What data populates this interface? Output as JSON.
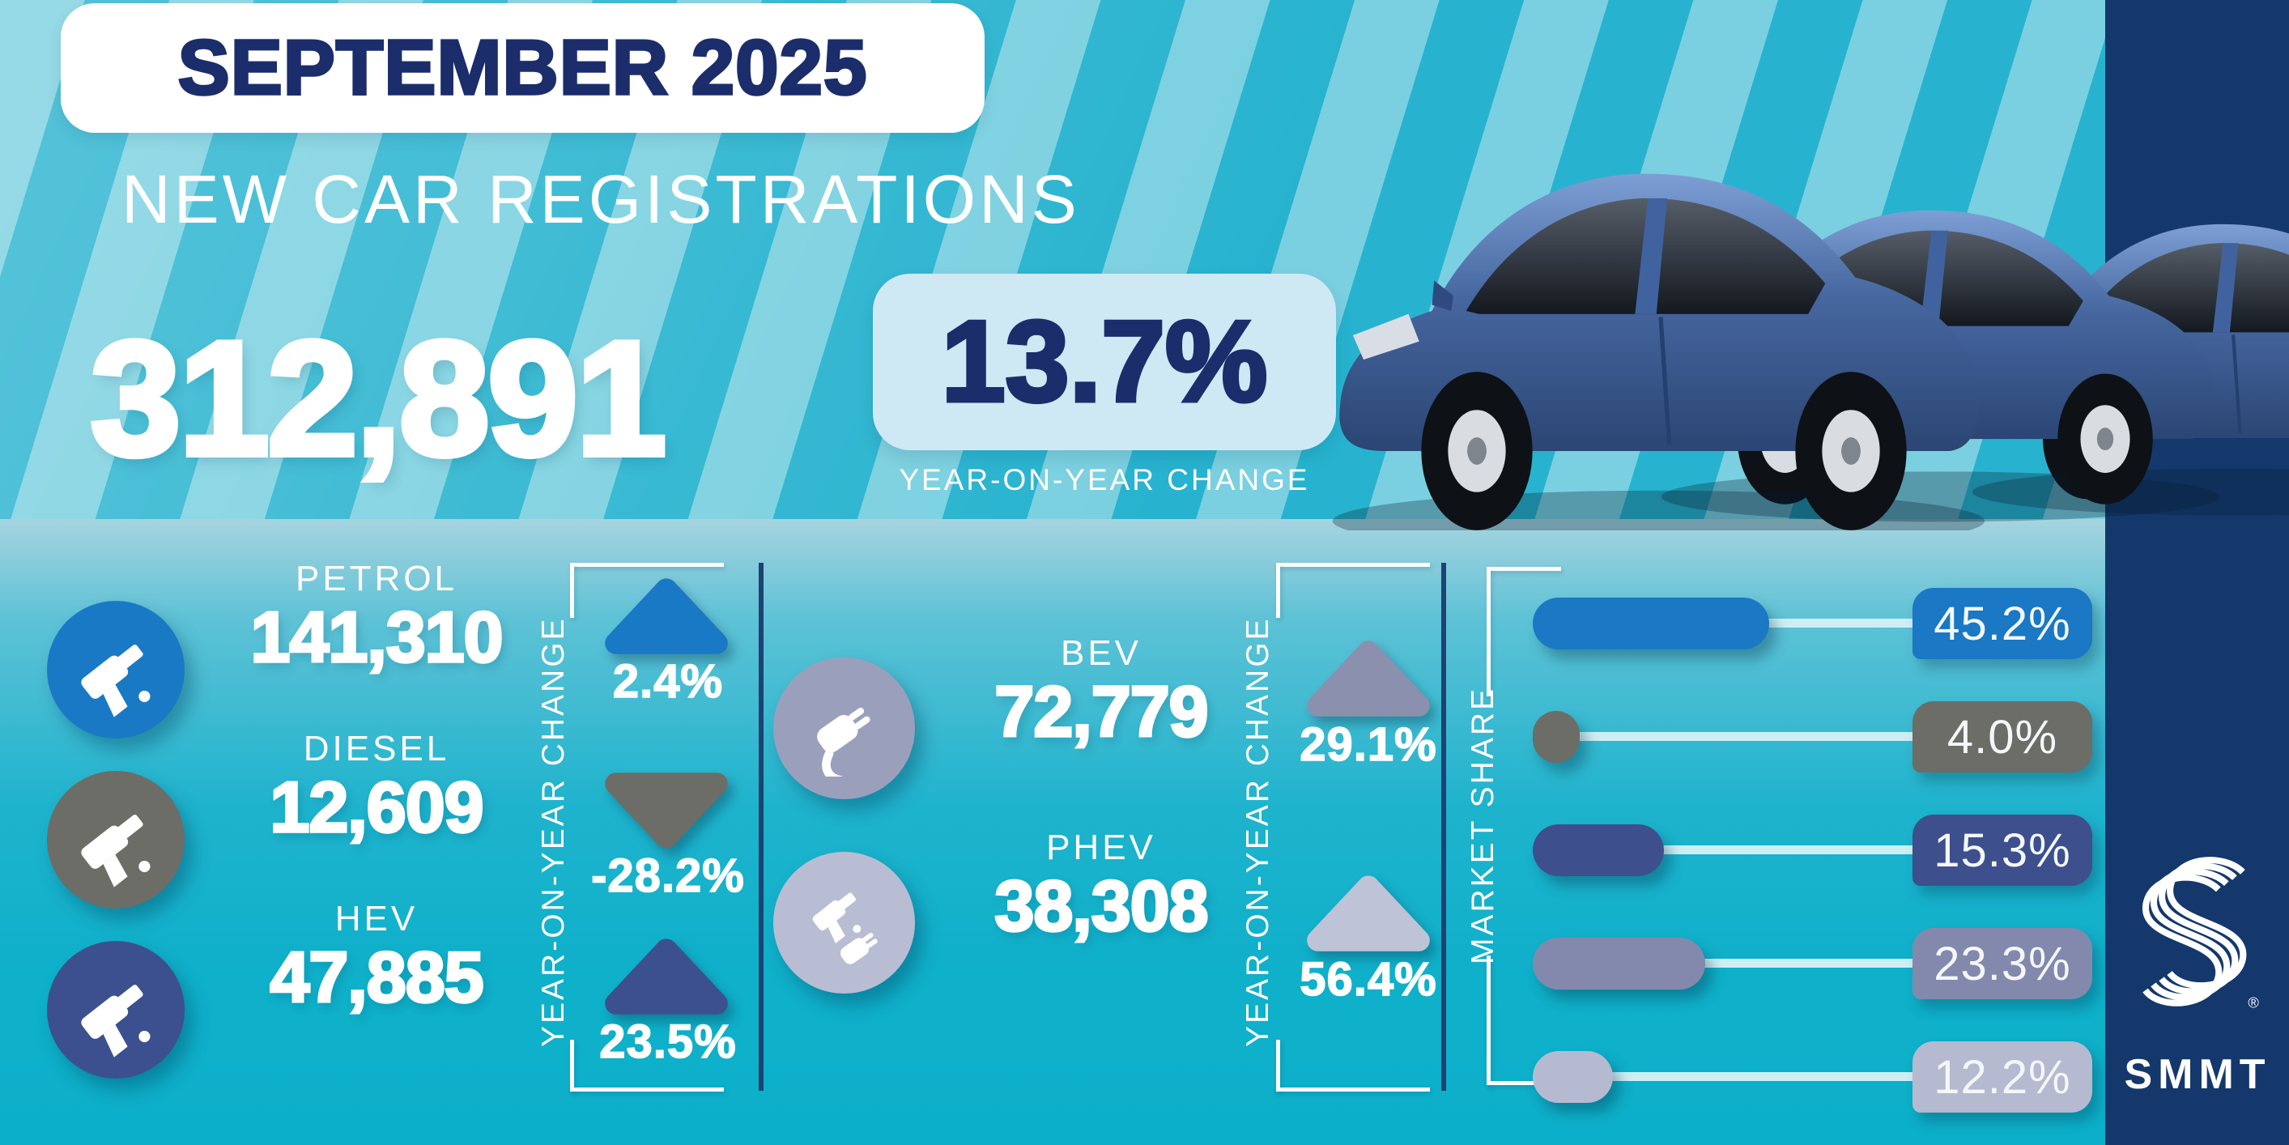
{
  "header": {
    "period": "SEPTEMBER 2025",
    "title": "NEW CAR REGISTRATIONS",
    "total": "312,891",
    "yoy_change": "13.7%",
    "yoy_caption": "YEAR-ON-YEAR CHANGE"
  },
  "brand": {
    "logo_text": "SMMT",
    "registered_mark": "®"
  },
  "colors": {
    "navy_text": "#1b2d6b",
    "sidebar": "#14386c",
    "stripe_light": "#7ad0e0",
    "stripe_dark": "#27b3cf",
    "panel_light": "#cfe9f4",
    "track": "#cdeff4",
    "divider": "#1d4273"
  },
  "fuel_columns": {
    "left": {
      "axis_label": "YEAR-ON-YEAR CHANGE",
      "rows": [
        {
          "label": "PETROL",
          "value": "141,310",
          "change": "2.4%",
          "direction": "up",
          "icon_color": "#1a79c5",
          "arrow_color": "#1a79c5"
        },
        {
          "label": "DIESEL",
          "value": "12,609",
          "change": "-28.2%",
          "direction": "down",
          "icon_color": "#6c6d67",
          "arrow_color": "#6c6d67"
        },
        {
          "label": "HEV",
          "value": "47,885",
          "change": "23.5%",
          "direction": "up",
          "icon_color": "#3c508f",
          "arrow_color": "#3c508f"
        }
      ]
    },
    "right": {
      "axis_label": "YEAR-ON-YEAR CHANGE",
      "rows": [
        {
          "label": "BEV",
          "value": "72,779",
          "change": "29.1%",
          "direction": "up",
          "icon_color": "#9aa0bc",
          "arrow_color": "#8b90ae"
        },
        {
          "label": "PHEV",
          "value": "38,308",
          "change": "56.4%",
          "direction": "up",
          "icon_color": "#b9bdd3",
          "arrow_color": "#bfc3d8"
        }
      ]
    }
  },
  "market_share": {
    "axis_label": "MARKET SHARE",
    "rows": [
      {
        "fuel": "PETROL",
        "share": "45.2%",
        "pct": 45.2,
        "color": "#1a78c4"
      },
      {
        "fuel": "DIESEL",
        "share": "4.0%",
        "pct": 4.0,
        "color": "#6c6d67"
      },
      {
        "fuel": "HEV",
        "share": "15.3%",
        "pct": 15.3,
        "color": "#3d4f8d"
      },
      {
        "fuel": "BEV",
        "share": "23.3%",
        "pct": 23.3,
        "color": "#8389ad"
      },
      {
        "fuel": "PHEV",
        "share": "12.2%",
        "pct": 12.2,
        "color": "#b6bad0"
      }
    ]
  },
  "chart_data": {
    "type": "bar",
    "title": "SEPTEMBER 2025 NEW CAR REGISTRATIONS",
    "total_registrations": 312891,
    "total_yoy_change_pct": 13.7,
    "categories": [
      "PETROL",
      "DIESEL",
      "HEV",
      "BEV",
      "PHEV"
    ],
    "series": [
      {
        "name": "Registrations",
        "values": [
          141310,
          12609,
          47885,
          72779,
          38308
        ]
      },
      {
        "name": "Year-on-year change %",
        "values": [
          2.4,
          -28.2,
          23.5,
          29.1,
          56.4
        ]
      },
      {
        "name": "Market share %",
        "values": [
          45.2,
          4.0,
          15.3,
          23.3,
          12.2
        ]
      }
    ],
    "legend_position": "none",
    "grid": false,
    "xlabel": "",
    "ylabel": "MARKET SHARE"
  }
}
